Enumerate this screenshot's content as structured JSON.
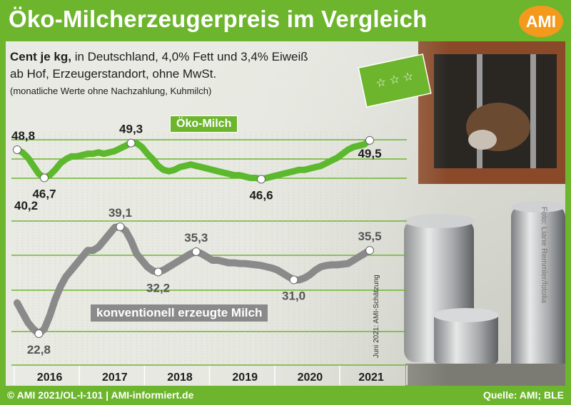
{
  "header": {
    "title": "Öko-Milcherzeugerpreis im Vergleich",
    "logo_text": "AMI"
  },
  "subtitle": {
    "unit_bold": "Cent je kg,",
    "line1_rest": " in Deutschland, 4,0% Fett und 3,4% Eiweiß",
    "line2": "ab Hof, Erzeugerstandort, ohne MwSt.",
    "line3": "(monatliche Werte ohne Nachzahlung, Kuhmilch)"
  },
  "footer": {
    "left": "© AMI 2021/OL-I-101 | AMI-informiert.de",
    "right": "Quelle: AMI; BLE"
  },
  "photo_credit": "Foto: Liane Remmler/fotolia",
  "colors": {
    "brand_green": "#6cb52d",
    "line_green": "#5cb82c",
    "conv_grey": "#8a8a8a",
    "logo_orange": "#f39a1c"
  },
  "chart_data": {
    "type": "line",
    "x": [
      "2016-01",
      "2016-02",
      "2016-03",
      "2016-04",
      "2016-05",
      "2016-06",
      "2016-07",
      "2016-08",
      "2016-09",
      "2016-10",
      "2016-11",
      "2016-12",
      "2017-01",
      "2017-02",
      "2017-03",
      "2017-04",
      "2017-05",
      "2017-06",
      "2017-07",
      "2017-08",
      "2017-09",
      "2017-10",
      "2017-11",
      "2017-12",
      "2018-01",
      "2018-02",
      "2018-03",
      "2018-04",
      "2018-05",
      "2018-06",
      "2018-07",
      "2018-08",
      "2018-09",
      "2018-10",
      "2018-11",
      "2018-12",
      "2019-01",
      "2019-02",
      "2019-03",
      "2019-04",
      "2019-05",
      "2019-06",
      "2019-07",
      "2019-08",
      "2019-09",
      "2019-10",
      "2019-11",
      "2019-12",
      "2020-01",
      "2020-02",
      "2020-03",
      "2020-04",
      "2020-05",
      "2020-06",
      "2020-07",
      "2020-08",
      "2020-09",
      "2020-10",
      "2020-11",
      "2020-12",
      "2021-01",
      "2021-02",
      "2021-03",
      "2021-04",
      "2021-05",
      "2021-06"
    ],
    "x_categories": [
      "2016",
      "2017",
      "2018",
      "2019",
      "2020",
      "2021"
    ],
    "series": [
      {
        "name": "Öko-Milch",
        "values": [
          48.8,
          48.6,
          48.2,
          47.6,
          47.0,
          46.7,
          46.9,
          47.3,
          47.8,
          48.1,
          48.3,
          48.3,
          48.4,
          48.5,
          48.5,
          48.6,
          48.5,
          48.6,
          48.7,
          48.9,
          49.1,
          49.3,
          49.3,
          49.0,
          48.5,
          48.1,
          47.6,
          47.3,
          47.2,
          47.3,
          47.5,
          47.6,
          47.7,
          47.6,
          47.5,
          47.4,
          47.3,
          47.2,
          47.1,
          47.0,
          46.9,
          46.9,
          46.8,
          46.7,
          46.7,
          46.6,
          46.7,
          46.8,
          46.9,
          47.0,
          47.1,
          47.2,
          47.3,
          47.3,
          47.4,
          47.5,
          47.6,
          47.8,
          48.0,
          48.2,
          48.5,
          48.8,
          49.0,
          49.1,
          49.2,
          49.5
        ],
        "labels": [
          {
            "index": 0,
            "text": "48,8"
          },
          {
            "index": 5,
            "text": "46,7"
          },
          {
            "index": 21,
            "text": "49,3"
          },
          {
            "index": 45,
            "text": "46,6"
          },
          {
            "index": 65,
            "text": "49,5"
          }
        ]
      },
      {
        "name": "konventionell erzeugte Milch",
        "values": [
          27.5,
          26.0,
          24.5,
          23.5,
          22.8,
          23.5,
          25.5,
          28.0,
          30.0,
          31.5,
          32.5,
          33.5,
          34.5,
          35.5,
          35.5,
          36.0,
          37.0,
          38.0,
          39.0,
          39.1,
          38.5,
          37.0,
          35.0,
          34.0,
          33.0,
          32.4,
          32.2,
          32.5,
          33.0,
          33.5,
          34.0,
          34.5,
          35.0,
          35.3,
          35.0,
          34.5,
          34.0,
          34.0,
          33.8,
          33.6,
          33.6,
          33.5,
          33.5,
          33.4,
          33.3,
          33.2,
          33.0,
          32.8,
          32.5,
          32.0,
          31.5,
          31.0,
          31.0,
          31.3,
          31.8,
          32.5,
          33.0,
          33.2,
          33.3,
          33.3,
          33.4,
          33.5,
          34.0,
          34.5,
          35.0,
          35.5
        ],
        "labels": [
          {
            "index": 4,
            "text": "22,8"
          },
          {
            "index": 19,
            "text": "39,1"
          },
          {
            "index": 26,
            "text": "32,2"
          },
          {
            "index": 33,
            "text": "35,3"
          },
          {
            "index": 51,
            "text": "31,0"
          },
          {
            "index": 65,
            "text": "35,5"
          }
        ]
      }
    ],
    "axis_value_label": "40,2",
    "axis_value": 40.2,
    "estimate_note": "Juni 2021: AMI-Schätzung",
    "grid": true,
    "legend": "inline labels"
  }
}
